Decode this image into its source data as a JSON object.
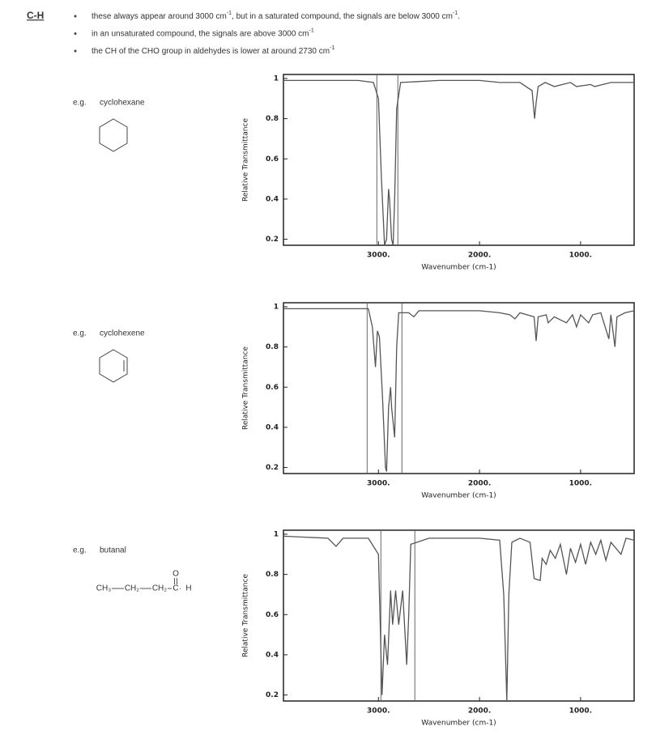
{
  "header": {
    "label": "C-H",
    "bullets": [
      [
        "these always appear around 3000 cm",
        "-1",
        ", but in a saturated compound, the signals are below 3000 cm",
        "-1",
        "."
      ],
      [
        "in an unsaturated compound, the signals are above 3000 cm",
        "-1"
      ],
      [
        "the CH of the CHO group in aldehydes is lower at around 2730 cm",
        "-1"
      ]
    ]
  },
  "examples": [
    {
      "prefix": "e.g.",
      "name": "cyclohexane"
    },
    {
      "prefix": "e.g.",
      "name": "cyclohexene"
    },
    {
      "prefix": "e.g.",
      "name": "butanal"
    }
  ],
  "butanal_formula": {
    "parts": [
      "CH₃",
      "CH₂",
      "CH₂",
      "C",
      "H"
    ],
    "oxygen": "O"
  },
  "chart_data": [
    {
      "type": "line",
      "xlabel": "Wavenumber (cm-1)",
      "ylabel": "Relative Transmittance",
      "color": "#555555",
      "xlim": [
        3940,
        470
      ],
      "ylim": [
        0.17,
        1.02
      ],
      "xticks": [
        {
          "value": 3000,
          "label": "3000."
        },
        {
          "value": 2000,
          "label": "2000."
        },
        {
          "value": 1000,
          "label": "1000."
        }
      ],
      "yticks": [
        0.2,
        0.4,
        0.6,
        0.8,
        1
      ],
      "vlines": [
        3016,
        2808
      ],
      "x": [
        3940,
        3600,
        3200,
        3050,
        3000,
        2970,
        2940,
        2920,
        2900,
        2890,
        2870,
        2855,
        2840,
        2820,
        2780,
        2400,
        2000,
        1800,
        1600,
        1480,
        1455,
        1440,
        1420,
        1350,
        1260,
        1100,
        1040,
        900,
        860,
        700,
        470
      ],
      "values": [
        0.99,
        0.99,
        0.99,
        0.98,
        0.9,
        0.5,
        0.17,
        0.2,
        0.45,
        0.4,
        0.2,
        0.17,
        0.4,
        0.85,
        0.98,
        0.99,
        0.99,
        0.98,
        0.98,
        0.94,
        0.8,
        0.88,
        0.96,
        0.98,
        0.96,
        0.98,
        0.96,
        0.97,
        0.96,
        0.98,
        0.98
      ]
    },
    {
      "type": "line",
      "xlabel": "Wavenumber (cm-1)",
      "ylabel": "Relative Transmittance",
      "color": "#555555",
      "xlim": [
        3940,
        470
      ],
      "ylim": [
        0.17,
        1.02
      ],
      "xticks": [
        {
          "value": 3000,
          "label": "3000."
        },
        {
          "value": 2000,
          "label": "2000."
        },
        {
          "value": 1000,
          "label": "1000."
        }
      ],
      "yticks": [
        0.2,
        0.4,
        0.6,
        0.8,
        1
      ],
      "vlines": [
        3112,
        2768
      ],
      "x": [
        3940,
        3200,
        3100,
        3060,
        3030,
        3010,
        2990,
        2960,
        2930,
        2920,
        2900,
        2880,
        2870,
        2840,
        2820,
        2800,
        2700,
        2650,
        2600,
        2000,
        1800,
        1700,
        1650,
        1600,
        1460,
        1440,
        1420,
        1340,
        1320,
        1260,
        1140,
        1080,
        1040,
        1000,
        920,
        880,
        800,
        720,
        700,
        660,
        640,
        560,
        470
      ],
      "values": [
        0.99,
        0.99,
        0.99,
        0.9,
        0.7,
        0.88,
        0.85,
        0.55,
        0.2,
        0.18,
        0.5,
        0.6,
        0.5,
        0.35,
        0.8,
        0.97,
        0.97,
        0.95,
        0.98,
        0.98,
        0.97,
        0.96,
        0.94,
        0.97,
        0.95,
        0.83,
        0.95,
        0.96,
        0.92,
        0.95,
        0.92,
        0.96,
        0.9,
        0.96,
        0.92,
        0.96,
        0.97,
        0.84,
        0.96,
        0.8,
        0.95,
        0.97,
        0.98
      ]
    },
    {
      "type": "line",
      "xlabel": "Wavenumber (cm-1)",
      "ylabel": "Relative Transmittance",
      "color": "#555555",
      "xlim": [
        3940,
        470
      ],
      "ylim": [
        0.17,
        1.02
      ],
      "xticks": [
        {
          "value": 3000,
          "label": "3000."
        },
        {
          "value": 2000,
          "label": "2000."
        },
        {
          "value": 1000,
          "label": "1000."
        }
      ],
      "yticks": [
        0.2,
        0.4,
        0.6,
        0.8,
        1
      ],
      "vlines": [
        2976,
        2640
      ],
      "x": [
        3940,
        3500,
        3420,
        3350,
        3100,
        3000,
        2965,
        2940,
        2910,
        2880,
        2860,
        2830,
        2800,
        2760,
        2720,
        2700,
        2680,
        2500,
        2000,
        1800,
        1760,
        1730,
        1710,
        1680,
        1600,
        1500,
        1460,
        1400,
        1380,
        1340,
        1300,
        1250,
        1200,
        1140,
        1100,
        1050,
        1000,
        950,
        900,
        850,
        800,
        750,
        700,
        600,
        550,
        470
      ],
      "values": [
        0.99,
        0.98,
        0.94,
        0.98,
        0.98,
        0.9,
        0.2,
        0.5,
        0.35,
        0.72,
        0.55,
        0.72,
        0.55,
        0.72,
        0.35,
        0.6,
        0.95,
        0.98,
        0.98,
        0.97,
        0.7,
        0.17,
        0.7,
        0.96,
        0.98,
        0.96,
        0.78,
        0.77,
        0.88,
        0.85,
        0.92,
        0.88,
        0.95,
        0.8,
        0.93,
        0.86,
        0.95,
        0.85,
        0.96,
        0.9,
        0.97,
        0.87,
        0.96,
        0.9,
        0.98,
        0.97
      ]
    }
  ]
}
